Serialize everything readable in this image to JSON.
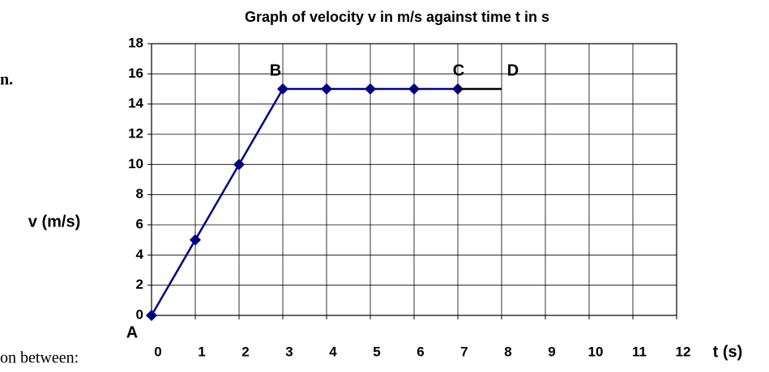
{
  "chart_data": {
    "type": "line",
    "title": "Graph of velocity v in m/s against time t in s",
    "xlabel": "t  (s)",
    "ylabel": "v  (m/s)",
    "xlim": [
      0,
      12
    ],
    "xticks": [
      0,
      1,
      2,
      3,
      4,
      5,
      6,
      7,
      8,
      9,
      10,
      11,
      12
    ],
    "ylim": [
      0,
      18
    ],
    "yticks": [
      0,
      2,
      4,
      6,
      8,
      10,
      12,
      14,
      16,
      18
    ],
    "grid": true,
    "series": [
      {
        "color": "#000080",
        "marker": "diamond",
        "x": [
          0,
          1,
          2,
          3,
          4,
          5,
          6,
          7
        ],
        "values": [
          0,
          5,
          10,
          15,
          15,
          15,
          15,
          15
        ]
      },
      {
        "color": "#000000",
        "x": [
          7,
          8
        ],
        "values": [
          15,
          15
        ]
      }
    ],
    "annotations": [
      "A",
      "B",
      "C",
      "D"
    ],
    "fragments": [
      "n.",
      "on between:"
    ]
  }
}
